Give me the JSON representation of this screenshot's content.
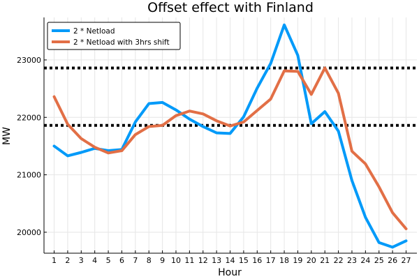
{
  "chart_data": {
    "type": "line",
    "title": "Offset effect with Finland",
    "xlabel": "Hour",
    "ylabel": "MW",
    "xlim": [
      0.25,
      27.8
    ],
    "ylim": [
      19635,
      23740
    ],
    "x": [
      1,
      2,
      3,
      4,
      5,
      6,
      7,
      8,
      9,
      10,
      11,
      12,
      13,
      14,
      15,
      16,
      17,
      18,
      19,
      20,
      21,
      22,
      23,
      24,
      25,
      26,
      27
    ],
    "xticks": [
      "1",
      "2",
      "3",
      "4",
      "5",
      "6",
      "7",
      "8",
      "9",
      "10",
      "11",
      "12",
      "13",
      "14",
      "15",
      "16",
      "17",
      "18",
      "19",
      "20",
      "21",
      "22",
      "23",
      "24",
      "25",
      "26",
      "27"
    ],
    "yticks": [
      {
        "value": 20000,
        "label": "20000"
      },
      {
        "value": 21000,
        "label": "21000"
      },
      {
        "value": 22000,
        "label": "22000"
      },
      {
        "value": 23000,
        "label": "23000"
      }
    ],
    "grid": true,
    "legend_position": "top-left",
    "series": [
      {
        "name": "2 * Netload",
        "color": "#009AF9",
        "values": [
          21500,
          21330,
          21390,
          21460,
          21420,
          21440,
          21920,
          22240,
          22260,
          22130,
          21970,
          21840,
          21730,
          21720,
          22010,
          22510,
          22940,
          23610,
          23080,
          21890,
          22100,
          21760,
          20900,
          20260,
          19820,
          19740,
          19850
        ]
      },
      {
        "name": "2 * Netload with 3hrs shift",
        "color": "#E26F46",
        "values": [
          22360,
          21880,
          21630,
          21480,
          21380,
          21420,
          21700,
          21840,
          21860,
          22030,
          22110,
          22060,
          21940,
          21850,
          21920,
          22120,
          22320,
          22810,
          22800,
          22400,
          22860,
          22420,
          21410,
          21190,
          20790,
          20340,
          20060
        ]
      }
    ],
    "reference_lines": [
      {
        "y": 22860,
        "style": "dotted",
        "color": "#000000"
      },
      {
        "y": 21860,
        "style": "dotted",
        "color": "#000000"
      }
    ]
  }
}
